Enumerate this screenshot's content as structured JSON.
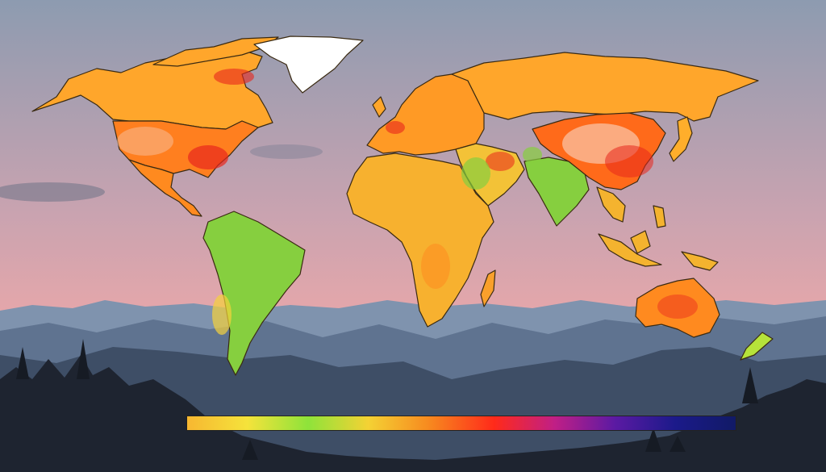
{
  "colors": {
    "sky_top": "#8d9bb0",
    "sky_mid": "#c9a3b0",
    "sky_low": "#f0a8a8",
    "mountain_far": "#7f93ae",
    "mountain_mid": "#5f7390",
    "mountain_near": "#3e4e66",
    "forest": "#1e2430",
    "land_hot": "#ff7a1a",
    "land_warm": "#ffae2b",
    "land_mild": "#f5d23c",
    "land_green": "#86cf3f",
    "land_red": "#e8261c",
    "greenland": "#ffffff",
    "border": "#3a2a12"
  },
  "legend": {
    "scale_colors": [
      "#f7b731",
      "#f5e33b",
      "#8ee33a",
      "#f4d234",
      "#f78a1f",
      "#ff2a1a",
      "#c01f86",
      "#5b1aa3",
      "#1b1a8a",
      "#111a66"
    ]
  },
  "map": {
    "regions": [
      {
        "name": "north-america",
        "fill": "#ffa62b"
      },
      {
        "name": "usa",
        "fill": "#ff7f1f"
      },
      {
        "name": "mexico-central",
        "fill": "#ff8a1f"
      },
      {
        "name": "south-america",
        "fill": "#86cf3f"
      },
      {
        "name": "greenland",
        "fill": "#ffffff"
      },
      {
        "name": "europe",
        "fill": "#ff9a25"
      },
      {
        "name": "russia",
        "fill": "#ffa62b"
      },
      {
        "name": "africa",
        "fill": "#f7b12f"
      },
      {
        "name": "middle-east",
        "fill": "#f3c237"
      },
      {
        "name": "india",
        "fill": "#86cf3f"
      },
      {
        "name": "china",
        "fill": "#ff6a1a"
      },
      {
        "name": "southeast-asia",
        "fill": "#f4b32f"
      },
      {
        "name": "australia",
        "fill": "#ff8a1f"
      },
      {
        "name": "new-zealand",
        "fill": "#b6e33a"
      },
      {
        "name": "madagascar",
        "fill": "#f9a02b"
      },
      {
        "name": "japan",
        "fill": "#ffae2b"
      },
      {
        "name": "uk",
        "fill": "#ffa62b"
      }
    ]
  }
}
